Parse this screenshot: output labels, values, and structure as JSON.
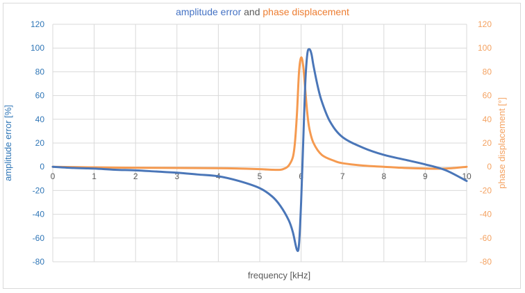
{
  "chart_data": {
    "type": "line",
    "title_parts": [
      {
        "text": "amplitude error",
        "color": "#4472c4"
      },
      {
        "text": " and ",
        "color": "#595959"
      },
      {
        "text": "phase displacement",
        "color": "#ed7d31"
      }
    ],
    "xlabel": "frequency [kHz]",
    "ylabel_left": "amplitude error [%]",
    "ylabel_right": "phase displacement [°]",
    "xlim": [
      0,
      10
    ],
    "ylim_left": [
      -80,
      120
    ],
    "ylim_right": [
      -80,
      120
    ],
    "x_ticks": [
      0,
      1,
      2,
      3,
      4,
      5,
      6,
      7,
      8,
      9,
      10
    ],
    "y_ticks_left": [
      -80,
      -60,
      -40,
      -20,
      0,
      20,
      40,
      60,
      80,
      100,
      120
    ],
    "y_ticks_right": [
      -80,
      -60,
      -40,
      -20,
      0,
      20,
      40,
      60,
      80,
      100,
      120
    ],
    "grid": true,
    "legend": "none",
    "colors": {
      "left_axis": "#2e75b6",
      "right_axis": "#f4a261",
      "series_amplitude": "#4a76b8",
      "series_phase": "#f59a50",
      "grid": "#d9d9d9"
    },
    "series": [
      {
        "axis": "left",
        "x": [
          0,
          0.5,
          1,
          1.5,
          2,
          2.5,
          3,
          3.5,
          4,
          4.5,
          5,
          5.3,
          5.5,
          5.7,
          5.8,
          5.9,
          5.95,
          6.0,
          6.05,
          6.1,
          6.15,
          6.2,
          6.25,
          6.3,
          6.4,
          6.5,
          6.7,
          7.0,
          7.5,
          8.0,
          8.5,
          9.0,
          9.5,
          10.0
        ],
        "y": [
          0,
          -1,
          -1.5,
          -2.5,
          -3,
          -4,
          -5,
          -6.5,
          -8,
          -12,
          -18,
          -25,
          -33,
          -45,
          -55,
          -70,
          -65,
          -30,
          20,
          70,
          95,
          99,
          95,
          85,
          68,
          55,
          38,
          25,
          16,
          10,
          6,
          2,
          -3,
          -12
        ]
      },
      {
        "axis": "right",
        "x": [
          0,
          1,
          2,
          3,
          4,
          4.5,
          5,
          5.3,
          5.5,
          5.6,
          5.7,
          5.8,
          5.85,
          5.9,
          5.95,
          6.0,
          6.05,
          6.1,
          6.15,
          6.2,
          6.3,
          6.5,
          6.8,
          7.0,
          7.5,
          8.0,
          8.5,
          9.0,
          9.5,
          10.0
        ],
        "y": [
          0,
          -0.5,
          -0.8,
          -1,
          -1.2,
          -1.5,
          -2,
          -2.5,
          -2.5,
          -1.5,
          1,
          8,
          20,
          45,
          80,
          92,
          85,
          65,
          45,
          32,
          20,
          10,
          5,
          3,
          1,
          0,
          -1,
          -1.5,
          -1.5,
          0
        ]
      }
    ]
  }
}
